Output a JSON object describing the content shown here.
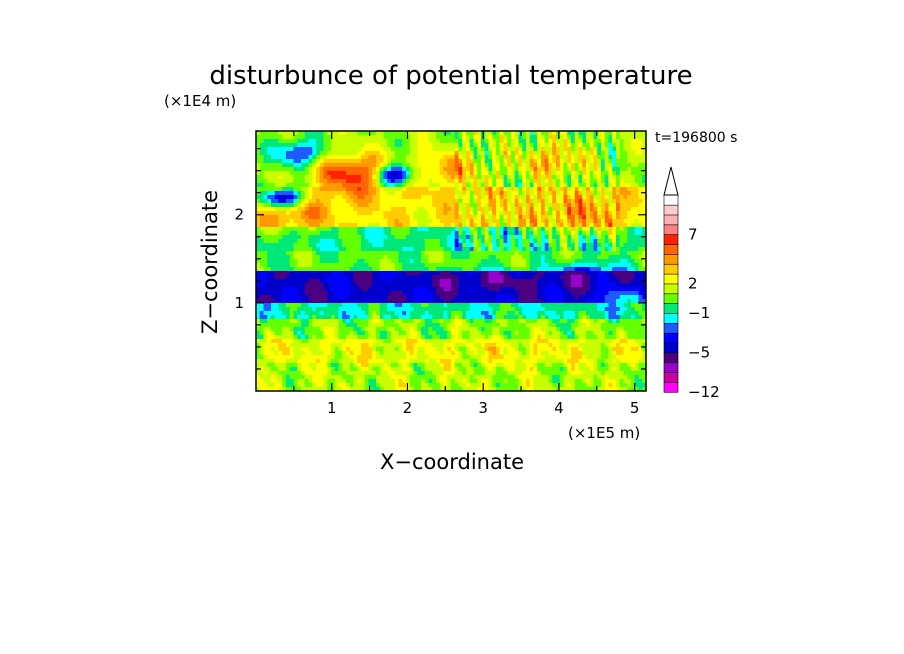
{
  "chart_data": {
    "type": "heatmap",
    "title": "disturbunce of potential temperature",
    "xlabel": "X−coordinate",
    "ylabel": "Z−coordinate",
    "x_unit": "(×1E5 m)",
    "y_unit": "(×1E4 m)",
    "time_label": "t=196800 s",
    "xlim": [
      0,
      5.15
    ],
    "ylim": [
      0,
      2.95
    ],
    "x_ticks": [
      {
        "value": 1,
        "label": "1"
      },
      {
        "value": 2,
        "label": "2"
      },
      {
        "value": 3,
        "label": "3"
      },
      {
        "value": 4,
        "label": "4"
      },
      {
        "value": 5,
        "label": "5"
      }
    ],
    "y_ticks": [
      {
        "value": 1,
        "label": "1"
      },
      {
        "value": 2,
        "label": "2"
      }
    ],
    "colorbar": {
      "colors": [
        "#ff00ff",
        "#cc00a0",
        "#9900cc",
        "#4b0082",
        "#0000cc",
        "#0000ff",
        "#1e5aff",
        "#00ffff",
        "#00e87a",
        "#64ff00",
        "#c8ff00",
        "#ffff00",
        "#ffcc00",
        "#ff9900",
        "#ff6600",
        "#ff2200",
        "#ff8080",
        "#ffb0b0",
        "#ffcccc",
        "#ffffff"
      ],
      "labels": [
        {
          "value": -12,
          "label": "−12"
        },
        {
          "value": -5,
          "label": "−5"
        },
        {
          "value": -1,
          "label": "−1"
        },
        {
          "value": 2,
          "label": "2"
        },
        {
          "value": 7,
          "label": "7"
        }
      ]
    },
    "bands": [
      {
        "z": [
          0.0,
          0.3
        ],
        "value": 1.3
      },
      {
        "z": [
          0.3,
          0.6
        ],
        "value": 2.0
      },
      {
        "z": [
          0.6,
          0.8
        ],
        "value": 0.8
      },
      {
        "z": [
          0.8,
          1.0
        ],
        "value": -0.8
      },
      {
        "z": [
          1.0,
          1.35
        ],
        "value": -4.5
      },
      {
        "z": [
          1.35,
          1.6
        ],
        "value": 0.3
      },
      {
        "z": [
          1.6,
          1.85
        ],
        "value": -0.5
      },
      {
        "z": [
          1.85,
          2.3
        ],
        "value": 2.8
      },
      {
        "z": [
          2.3,
          2.95
        ],
        "value": 1.0
      }
    ],
    "blobs": [
      {
        "x": 1.3,
        "z": 2.45,
        "rx": 0.55,
        "rz": 0.22,
        "value": 6.8
      },
      {
        "x": 0.5,
        "z": 2.05,
        "rx": 0.45,
        "rz": 0.2,
        "value": 5.0
      },
      {
        "x": 2.5,
        "z": 2.5,
        "rx": 0.5,
        "rz": 0.2,
        "value": 4.2
      },
      {
        "x": 4.35,
        "z": 2.0,
        "rx": 0.55,
        "rz": 0.2,
        "value": 4.5
      },
      {
        "x": 3.9,
        "z": 2.6,
        "rx": 0.4,
        "rz": 0.18,
        "value": 4.0
      },
      {
        "x": 0.55,
        "z": 2.7,
        "rx": 0.3,
        "rz": 0.15,
        "value": -3.5
      },
      {
        "x": 0.35,
        "z": 2.2,
        "rx": 0.28,
        "rz": 0.12,
        "value": -4.8
      },
      {
        "x": 1.85,
        "z": 2.45,
        "rx": 0.25,
        "rz": 0.13,
        "value": -4.5
      },
      {
        "x": 3.1,
        "z": 1.25,
        "rx": 0.9,
        "rz": 0.1,
        "value": -5.5
      },
      {
        "x": 4.4,
        "z": 1.3,
        "rx": 0.45,
        "rz": 0.13,
        "value": -5.2
      },
      {
        "x": 3.4,
        "z": 0.45,
        "rx": 0.8,
        "rz": 0.15,
        "value": 2.4
      },
      {
        "x": 1.3,
        "z": 0.45,
        "rx": 0.6,
        "rz": 0.14,
        "value": 2.2
      },
      {
        "x": 4.8,
        "z": 1.0,
        "rx": 0.3,
        "rz": 0.15,
        "value": -1.2
      }
    ]
  }
}
